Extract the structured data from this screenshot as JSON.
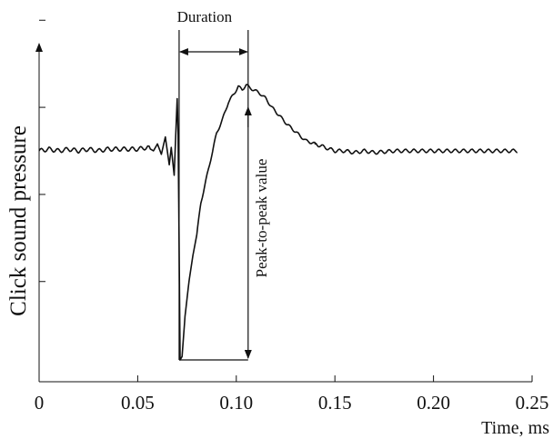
{
  "chart_data": {
    "type": "line",
    "title": "",
    "xlabel": "Time, ms",
    "ylabel": "Click sound pressure",
    "xlim": [
      0,
      0.25
    ],
    "ylim": [
      -1.25,
      1.05
    ],
    "x_ticks": [
      0,
      0.05,
      0.1,
      0.15,
      0.2,
      0.25
    ],
    "x_tick_labels": [
      "0",
      "0.05",
      "0.10",
      "0.15",
      "0.20",
      "0.25"
    ],
    "y_ticks": [
      0.75,
      0.25,
      -0.25,
      -0.75
    ],
    "grid": false,
    "series": [
      {
        "x": [
          0,
          0.005,
          0.01,
          0.015,
          0.02,
          0.025,
          0.03,
          0.035,
          0.04,
          0.045,
          0.05,
          0.055,
          0.058,
          0.06,
          0.062,
          0.064,
          0.066,
          0.067,
          0.0685,
          0.07,
          0.0705,
          0.0715,
          0.0725,
          0.074,
          0.076,
          0.078,
          0.08,
          0.082,
          0.085,
          0.088,
          0.09,
          0.093,
          0.096,
          0.099,
          0.101,
          0.103,
          0.105,
          0.107,
          0.109,
          0.112,
          0.115,
          0.118,
          0.122,
          0.126,
          0.13,
          0.135,
          0.14,
          0.145,
          0.15,
          0.155,
          0.16,
          0.165,
          0.17,
          0.18,
          0.19,
          0.2,
          0.21,
          0.22,
          0.23,
          0.2425
        ],
        "y": [
          0.0,
          0.01,
          0.0,
          0.01,
          0.0,
          0.01,
          0.0,
          0.01,
          0.01,
          0.01,
          0.01,
          0.02,
          0.0,
          0.04,
          -0.02,
          0.08,
          -0.08,
          0.02,
          -0.14,
          0.3,
          0.1,
          -1.2,
          -1.18,
          -0.95,
          -0.75,
          -0.6,
          -0.48,
          -0.3,
          -0.15,
          0.0,
          0.1,
          0.18,
          0.28,
          0.33,
          0.37,
          0.35,
          0.38,
          0.36,
          0.35,
          0.33,
          0.3,
          0.25,
          0.2,
          0.15,
          0.11,
          0.06,
          0.04,
          0.02,
          0.0,
          0.0,
          -0.01,
          0.0,
          -0.01,
          0.0,
          0.0,
          0.0,
          0.0,
          0.0,
          0.0,
          0.0
        ]
      }
    ],
    "annotations": {
      "duration_label": "Duration",
      "duration_range": [
        0.071,
        0.106
      ],
      "peak_to_peak_label": "Peak-to-peak value",
      "peak_to_peak_x": 0.106,
      "peak_to_peak_range": [
        -1.2,
        0.38
      ]
    }
  }
}
